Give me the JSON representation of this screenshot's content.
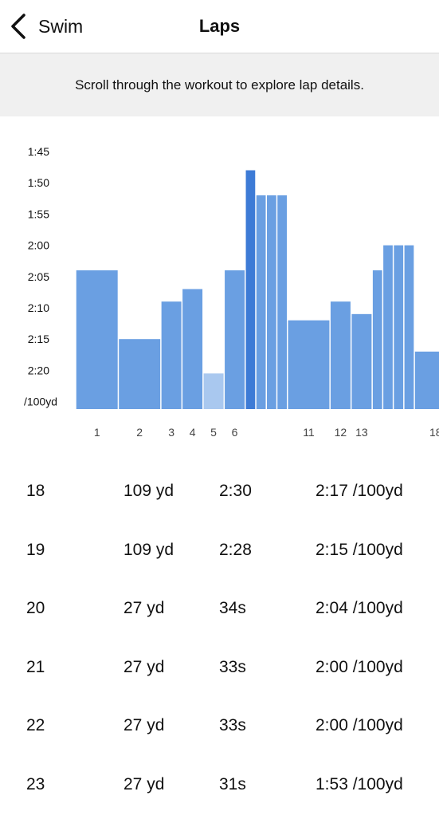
{
  "header": {
    "back_label": "Swim",
    "title": "Laps"
  },
  "banner": {
    "text": "Scroll through the workout to explore lap details."
  },
  "colors": {
    "bar": "#6a9fe2",
    "bar_selected": "#3d7bd6",
    "bar_light": "#a9c8ef",
    "banner_bg": "#f0f0f0"
  },
  "chart_data": {
    "type": "bar",
    "title": "",
    "xlabel": "",
    "ylabel": "/100yd",
    "y_axis_inverted": true,
    "y_ticks": [
      "1:45",
      "1:50",
      "1:55",
      "2:00",
      "2:05",
      "2:10",
      "2:15",
      "2:20"
    ],
    "y_unit_label": "/100yd",
    "ylim_seconds": [
      105,
      143
    ],
    "x_tick_labels": [
      {
        "lap": 1,
        "label": "1"
      },
      {
        "lap": 2,
        "label": "2"
      },
      {
        "lap": 3,
        "label": "3"
      },
      {
        "lap": 4,
        "label": "4"
      },
      {
        "lap": 5,
        "label": "5"
      },
      {
        "lap": 6,
        "label": "6"
      },
      {
        "lap": 11,
        "label": "11"
      },
      {
        "lap": 12,
        "label": "12"
      },
      {
        "lap": 13,
        "label": "13"
      },
      {
        "lap": 18,
        "label": "18"
      }
    ],
    "laps": [
      {
        "lap": 1,
        "distance_yd": 109,
        "pace_s": 124,
        "state": "normal"
      },
      {
        "lap": 2,
        "distance_yd": 109,
        "pace_s": 135,
        "state": "normal"
      },
      {
        "lap": 3,
        "distance_yd": 54,
        "pace_s": 129,
        "state": "normal"
      },
      {
        "lap": 4,
        "distance_yd": 54,
        "pace_s": 127,
        "state": "normal"
      },
      {
        "lap": 5,
        "distance_yd": 54,
        "pace_s": 140.5,
        "state": "light"
      },
      {
        "lap": 6,
        "distance_yd": 54,
        "pace_s": 124,
        "state": "normal"
      },
      {
        "lap": 7,
        "distance_yd": 27,
        "pace_s": 108,
        "state": "selected"
      },
      {
        "lap": 8,
        "distance_yd": 27,
        "pace_s": 112,
        "state": "normal"
      },
      {
        "lap": 9,
        "distance_yd": 27,
        "pace_s": 112,
        "state": "normal"
      },
      {
        "lap": 10,
        "distance_yd": 27,
        "pace_s": 112,
        "state": "normal"
      },
      {
        "lap": 11,
        "distance_yd": 109,
        "pace_s": 132,
        "state": "normal"
      },
      {
        "lap": 12,
        "distance_yd": 54,
        "pace_s": 129,
        "state": "normal"
      },
      {
        "lap": 13,
        "distance_yd": 54,
        "pace_s": 131,
        "state": "normal"
      },
      {
        "lap": 14,
        "distance_yd": 27,
        "pace_s": 124,
        "state": "normal"
      },
      {
        "lap": 15,
        "distance_yd": 27,
        "pace_s": 120,
        "state": "normal"
      },
      {
        "lap": 16,
        "distance_yd": 27,
        "pace_s": 120,
        "state": "normal"
      },
      {
        "lap": 17,
        "distance_yd": 27,
        "pace_s": 120,
        "state": "normal"
      },
      {
        "lap": 18,
        "distance_yd": 109,
        "pace_s": 137,
        "state": "normal"
      }
    ]
  },
  "laps_table": {
    "rows": [
      {
        "lap": "18",
        "distance": "109 yd",
        "time": "2:30",
        "pace": "2:17 /100yd"
      },
      {
        "lap": "19",
        "distance": "109 yd",
        "time": "2:28",
        "pace": "2:15 /100yd"
      },
      {
        "lap": "20",
        "distance": "27 yd",
        "time": "34s",
        "pace": "2:04 /100yd"
      },
      {
        "lap": "21",
        "distance": "27 yd",
        "time": "33s",
        "pace": "2:00 /100yd"
      },
      {
        "lap": "22",
        "distance": "27 yd",
        "time": "33s",
        "pace": "2:00 /100yd"
      },
      {
        "lap": "23",
        "distance": "27 yd",
        "time": "31s",
        "pace": "1:53 /100yd"
      }
    ]
  }
}
